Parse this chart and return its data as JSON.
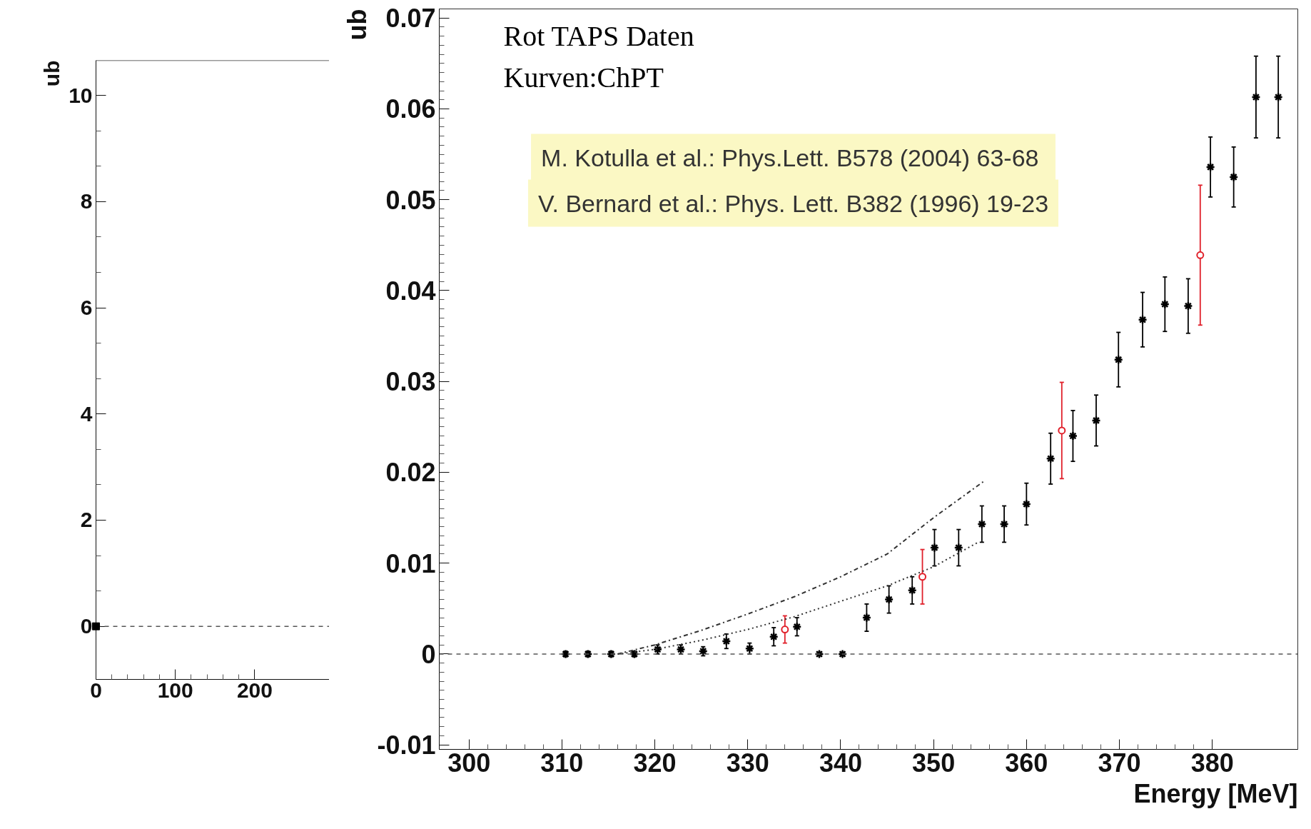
{
  "chart_data": [
    {
      "type": "scatter",
      "ylabel": "ub",
      "xlim": [
        0,
        294
      ],
      "ylim": [
        -1.0,
        10.66
      ],
      "xticks": [
        0,
        100,
        200
      ],
      "yticks": [
        0,
        2,
        4,
        6,
        8,
        10
      ],
      "marker": "square",
      "series": [
        {
          "color": "#000000",
          "x": [
            0
          ],
          "values": [
            0
          ]
        }
      ],
      "ref_lines": [
        {
          "axis": "y",
          "value": 0,
          "line_style": "dashed",
          "color": "#555555"
        }
      ]
    },
    {
      "type": "scatter",
      "xlabel": "Energy [MeV]",
      "ylabel": "ub",
      "xlim": [
        296.8,
        389.2
      ],
      "ylim": [
        -0.0105,
        0.071
      ],
      "xticks": [
        300,
        310,
        320,
        330,
        340,
        350,
        360,
        370,
        380
      ],
      "yticks": [
        -0.01,
        0,
        0.01,
        0.02,
        0.03,
        0.04,
        0.05,
        0.06,
        0.07
      ],
      "annotations": [
        "Rot TAPS Daten",
        "Kurven:ChPT",
        "M. Kotulla et al.:  Phys.Lett. B578 (2004) 63-68",
        "V. Bernard et al.: Phys. Lett. B382 (1996) 19-23"
      ],
      "ref_lines": [
        {
          "axis": "y",
          "value": 0,
          "line_style": "dashed",
          "color": "#555555"
        }
      ],
      "series": [
        {
          "type": "scatter",
          "color": "#000000",
          "marker": "cross",
          "x": [
            310.4,
            312.8,
            315.3,
            317.8,
            320.3,
            322.8,
            325.2,
            327.7,
            330.2,
            332.8,
            335.3,
            337.7,
            340.2,
            342.8,
            345.2,
            347.7,
            350.1,
            352.7,
            355.2,
            357.6,
            360.0,
            362.6,
            365.0,
            367.5,
            369.9,
            372.5,
            374.9,
            377.4,
            379.8,
            382.3,
            384.7,
            387.1
          ],
          "values": [
            0,
            0,
            0,
            0,
            0.0005,
            0.0005,
            0.0003,
            0.0014,
            0.0006,
            0.0019,
            0.003,
            0,
            0,
            0.004,
            0.006,
            0.007,
            0.0117,
            0.0117,
            0.0143,
            0.0143,
            0.0165,
            0.0215,
            0.024,
            0.0257,
            0.0324,
            0.0368,
            0.0385,
            0.0383,
            0.0536,
            0.0525,
            0.0613,
            0.0613
          ],
          "errors": [
            0.0003,
            0.0003,
            0.0003,
            0.0003,
            0.0005,
            0.0005,
            0.0005,
            0.0008,
            0.0006,
            0.001,
            0.001,
            0.0002,
            0.0002,
            0.0015,
            0.0015,
            0.0015,
            0.002,
            0.002,
            0.002,
            0.002,
            0.0023,
            0.0028,
            0.0028,
            0.0028,
            0.003,
            0.003,
            0.003,
            0.003,
            0.0033,
            0.0033,
            0.0045,
            0.0045
          ]
        },
        {
          "type": "scatter",
          "color": "#e0202a",
          "marker": "circle",
          "x": [
            334.0,
            348.8,
            363.8,
            378.7
          ],
          "values": [
            0.0027,
            0.0085,
            0.0246,
            0.0439
          ],
          "errors": [
            0.0015,
            0.003,
            0.0053,
            0.0077
          ]
        },
        {
          "type": "line",
          "color": "#333333",
          "line_style": "dashdot",
          "x": [
            316,
            320,
            325,
            330,
            335,
            340,
            345,
            350,
            355.4
          ],
          "values": [
            0,
            0.001,
            0.0026,
            0.0044,
            0.0063,
            0.0085,
            0.011,
            0.015,
            0.019
          ]
        },
        {
          "type": "line",
          "color": "#333333",
          "line_style": "dotted",
          "x": [
            316,
            320,
            325,
            330,
            335,
            340,
            345,
            350,
            354.8
          ],
          "values": [
            0,
            0.0005,
            0.0015,
            0.0027,
            0.0041,
            0.0058,
            0.0075,
            0.0096,
            0.0123
          ]
        }
      ]
    }
  ]
}
